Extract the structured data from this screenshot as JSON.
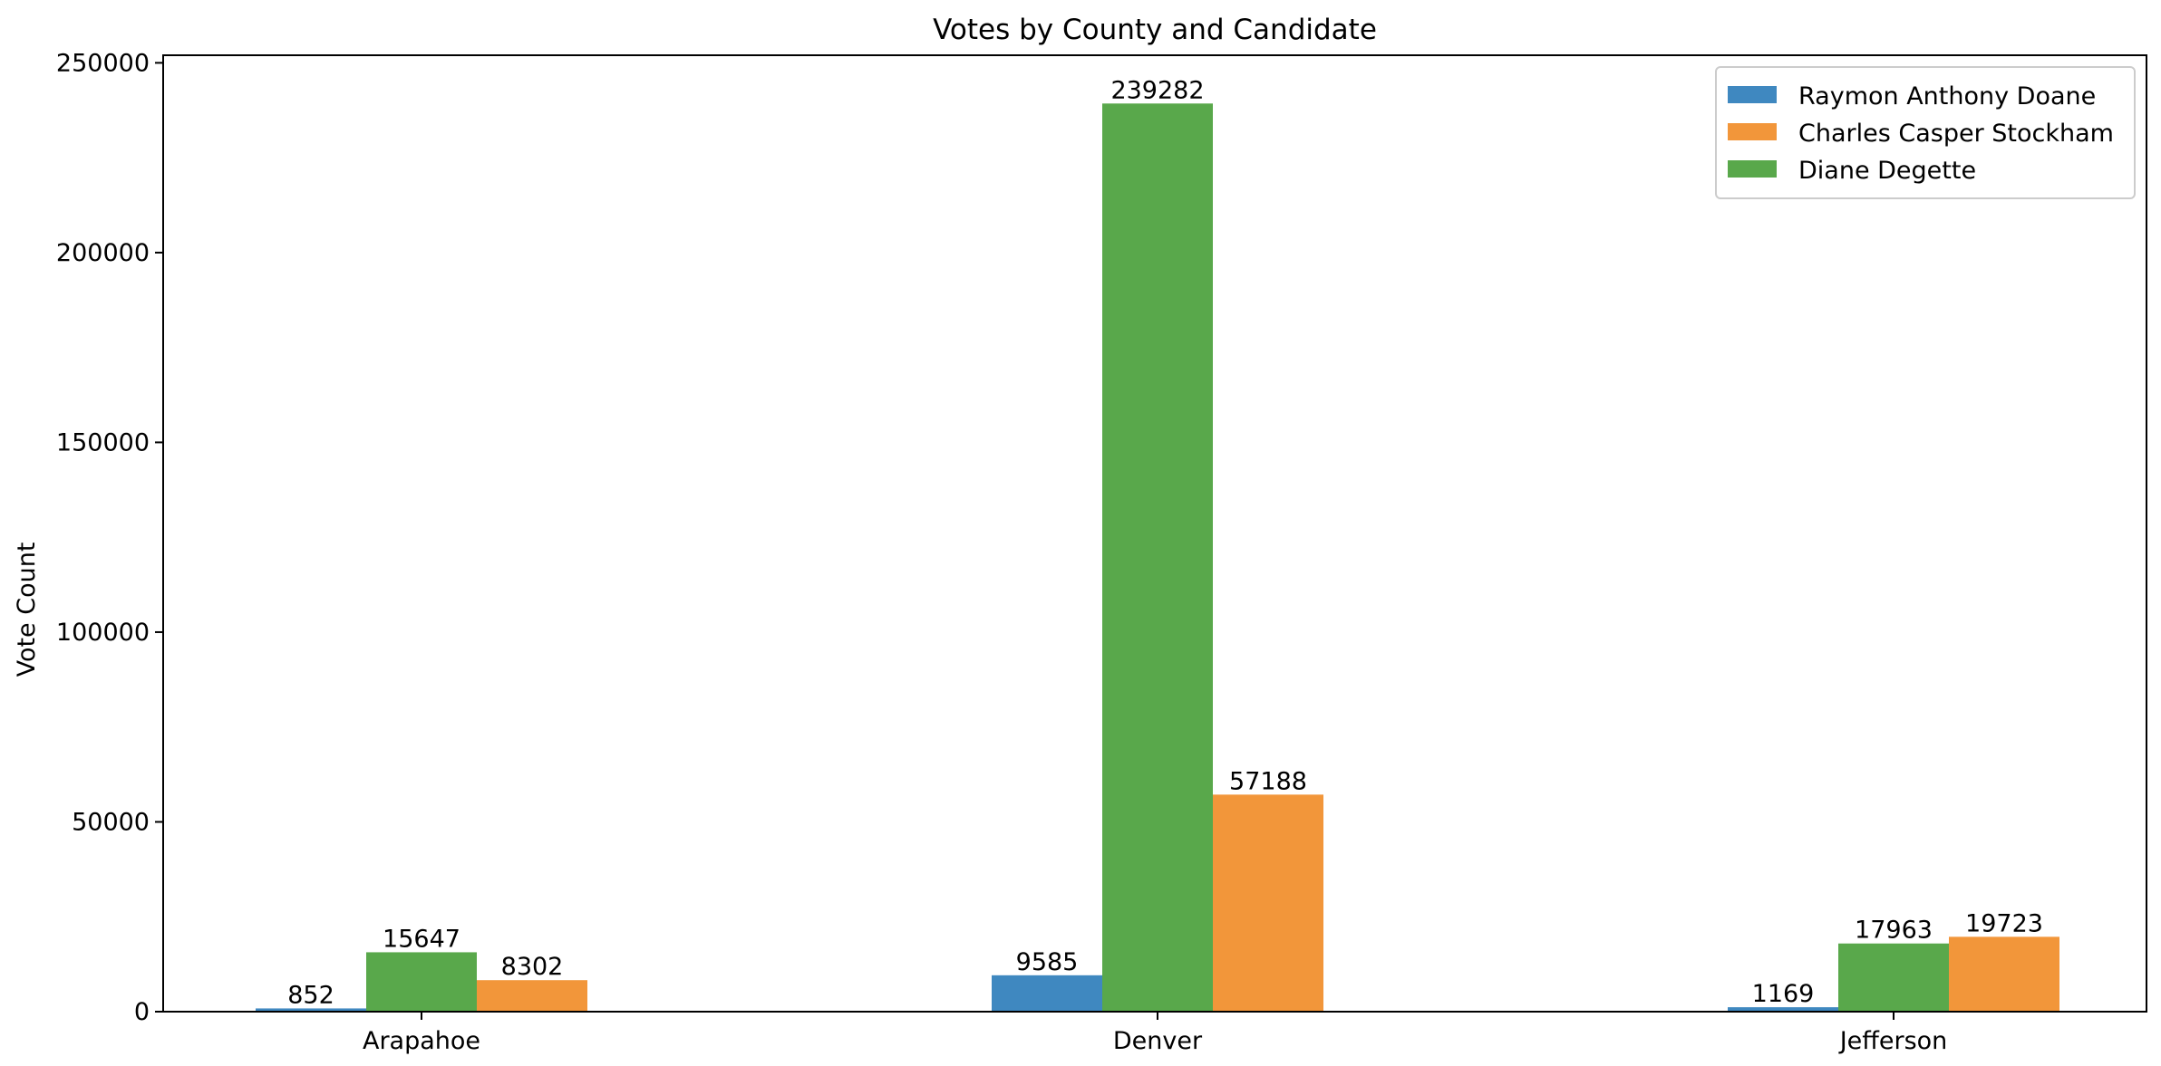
{
  "chart_data": {
    "type": "bar",
    "title": "Votes by County and Candidate",
    "xlabel": "",
    "ylabel": "Vote Count",
    "categories": [
      "Arapahoe",
      "Denver",
      "Jefferson"
    ],
    "series": [
      {
        "name": "Raymon Anthony Doane",
        "color": "#3f88c0",
        "values": [
          852,
          9585,
          1169
        ]
      },
      {
        "name": "Diane Degette",
        "color": "#59a84b",
        "values": [
          15647,
          239282,
          17963
        ]
      },
      {
        "name": "Charles Casper Stockham",
        "color": "#f2963a",
        "values": [
          8302,
          57188,
          19723
        ]
      }
    ],
    "legend_order": [
      "Raymon Anthony Doane",
      "Charles Casper Stockham",
      "Diane Degette"
    ],
    "ylim": [
      0,
      252000
    ],
    "yticks": [
      0,
      50000,
      100000,
      150000,
      200000,
      250000
    ],
    "grid": false,
    "legend_position": "top-right",
    "data_labels": true
  }
}
